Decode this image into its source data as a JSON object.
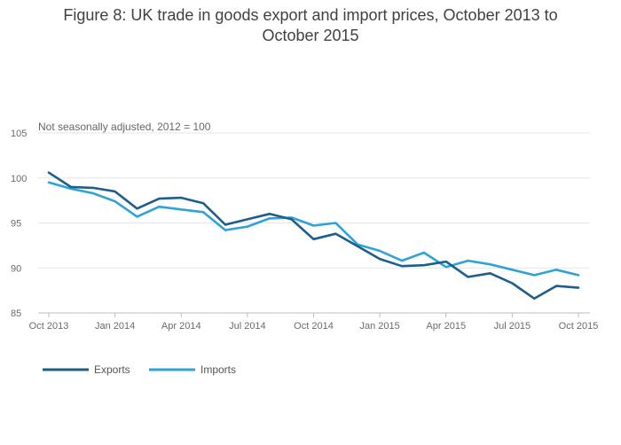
{
  "chart_data": {
    "type": "line",
    "title_lines": [
      "Figure 8: UK trade in goods export and import prices, October 2013 to",
      "October 2015"
    ],
    "subtitle": "Not seasonally adjusted, 2012 = 100",
    "xlabel": "",
    "ylabel": "",
    "ylim": [
      85,
      105
    ],
    "yticks": [
      85,
      90,
      95,
      100,
      105
    ],
    "xticks": [
      {
        "label": "Oct 2013",
        "index": 0
      },
      {
        "label": "Jan 2014",
        "index": 3
      },
      {
        "label": "Apr 2014",
        "index": 6
      },
      {
        "label": "Jul 2014",
        "index": 9
      },
      {
        "label": "Oct 2014",
        "index": 12
      },
      {
        "label": "Jan 2015",
        "index": 15
      },
      {
        "label": "Apr 2015",
        "index": 18
      },
      {
        "label": "Jul 2015",
        "index": 21
      },
      {
        "label": "Oct 2015",
        "index": 24
      }
    ],
    "x": [
      "Oct 2013",
      "Nov 2013",
      "Dec 2013",
      "Jan 2014",
      "Feb 2014",
      "Mar 2014",
      "Apr 2014",
      "May 2014",
      "Jun 2014",
      "Jul 2014",
      "Aug 2014",
      "Sep 2014",
      "Oct 2014",
      "Nov 2014",
      "Dec 2014",
      "Jan 2015",
      "Feb 2015",
      "Mar 2015",
      "Apr 2015",
      "May 2015",
      "Jun 2015",
      "Jul 2015",
      "Aug 2015",
      "Sep 2015",
      "Oct 2015"
    ],
    "series": [
      {
        "name": "Exports",
        "color": "#1f5d8a",
        "values": [
          100.6,
          99.0,
          98.9,
          98.5,
          96.6,
          97.7,
          97.8,
          97.2,
          94.8,
          95.4,
          96.0,
          95.4,
          93.2,
          93.8,
          92.4,
          91.0,
          90.2,
          90.3,
          90.7,
          89.0,
          89.4,
          88.3,
          86.6,
          88.0,
          87.8
        ]
      },
      {
        "name": "Imports",
        "color": "#2ea3d6",
        "values": [
          99.5,
          98.8,
          98.3,
          97.4,
          95.7,
          96.8,
          96.5,
          96.2,
          94.2,
          94.6,
          95.5,
          95.6,
          94.7,
          95.0,
          92.6,
          91.9,
          90.8,
          91.7,
          90.1,
          90.8,
          90.4,
          89.8,
          89.2,
          89.8,
          89.2
        ]
      }
    ],
    "grid": true,
    "legend_position": "bottom-left"
  }
}
